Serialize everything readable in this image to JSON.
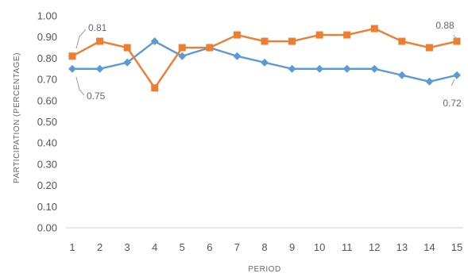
{
  "chart_data": {
    "type": "line",
    "title": "",
    "xlabel": "PERIOD",
    "ylabel": "PARTICIPATION (PERCENTAGE)",
    "x": [
      1,
      2,
      3,
      4,
      5,
      6,
      7,
      8,
      9,
      10,
      11,
      12,
      13,
      14,
      15
    ],
    "ylim": [
      0,
      1
    ],
    "yticks": [
      "0.00",
      "0.10",
      "0.20",
      "0.30",
      "0.40",
      "0.50",
      "0.60",
      "0.70",
      "0.80",
      "0.90",
      "1.00"
    ],
    "grid": false,
    "legend": "none",
    "series": [
      {
        "color": "#5b9bd5",
        "marker": "diamond",
        "values": [
          0.75,
          0.75,
          0.78,
          0.88,
          0.81,
          0.85,
          0.81,
          0.78,
          0.75,
          0.75,
          0.75,
          0.75,
          0.72,
          0.69,
          0.72
        ]
      },
      {
        "color": "#ed7d31",
        "marker": "square",
        "values": [
          0.81,
          0.88,
          0.85,
          0.66,
          0.85,
          0.85,
          0.91,
          0.88,
          0.88,
          0.91,
          0.91,
          0.94,
          0.88,
          0.85,
          0.88
        ]
      }
    ],
    "annotations": [
      {
        "text": "0.81",
        "series": 1,
        "point": 0
      },
      {
        "text": "0.75",
        "series": 0,
        "point": 0
      },
      {
        "text": "0.88",
        "series": 1,
        "point": 14
      },
      {
        "text": "0.72",
        "series": 0,
        "point": 14
      }
    ]
  }
}
